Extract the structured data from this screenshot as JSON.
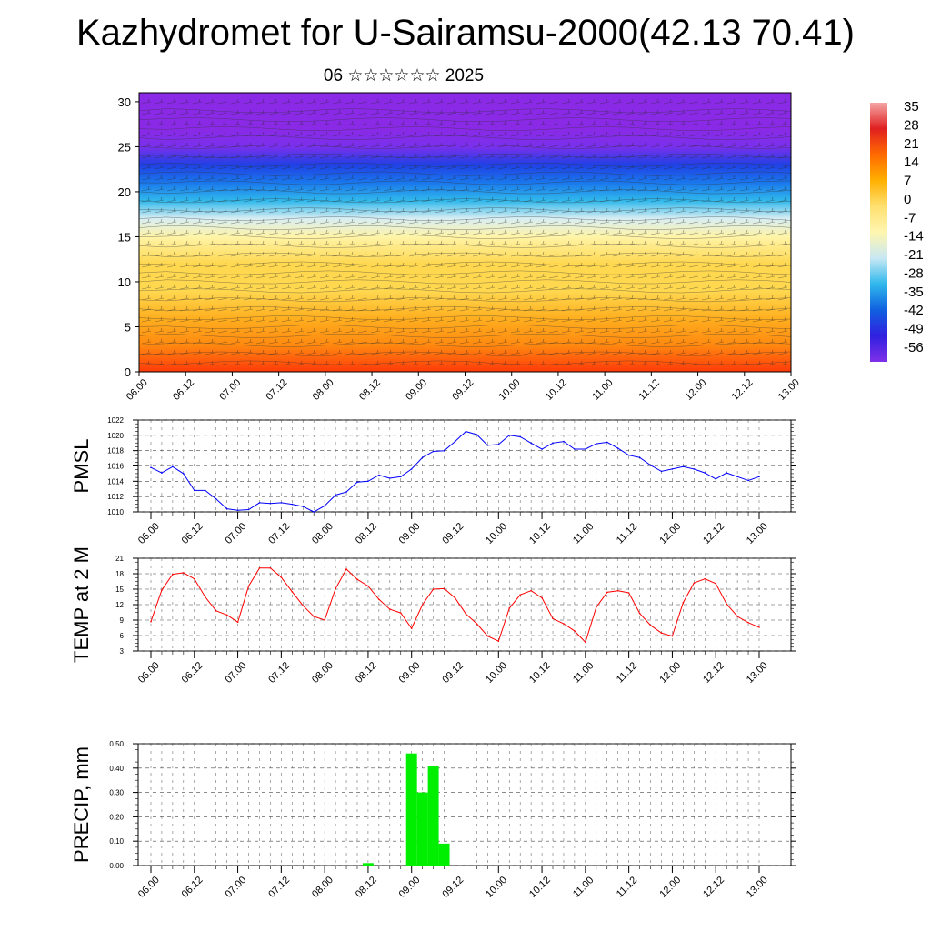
{
  "header": {
    "title": "Kazhydromet for U-Sairamsu-2000(42.13 70.41)",
    "subtitle": "06 ☆☆☆☆☆☆ 2025"
  },
  "chart_data": [
    {
      "type": "heatmap",
      "title": "",
      "x": [
        "06.00",
        "06.12",
        "07.00",
        "07.12",
        "08.00",
        "08.12",
        "09.00",
        "09.12",
        "10.00",
        "10.12",
        "11.00",
        "11.12",
        "12.00",
        "12.12",
        "13.00"
      ],
      "y_ticks": [
        0,
        5,
        10,
        15,
        20,
        25,
        30
      ],
      "ylim": [
        0,
        31
      ],
      "colorbar_labels": [
        "35",
        "28",
        "21",
        "14",
        "7",
        "0",
        "-7",
        "-14",
        "-21",
        "-28",
        "-35",
        "-42",
        "-49",
        "-56"
      ],
      "colorbar_colors": [
        "#f4a6a6",
        "#e02020",
        "#ff6a00",
        "#ffb000",
        "#ffe070",
        "#fff6b0",
        "#c8e8f4",
        "#30b8ec",
        "#1060e0",
        "#3020e0",
        "#8030e8"
      ],
      "temperature_profile": {
        "heights": [
          0,
          3,
          6,
          9,
          12,
          15,
          17,
          19,
          21,
          23,
          25,
          27,
          31
        ],
        "values_near": [
          21,
          16,
          11,
          6,
          1,
          -7,
          -14,
          -24,
          -35,
          -45,
          -54,
          -58,
          -60
        ]
      },
      "overlay": "wind barbs",
      "grid": false
    },
    {
      "type": "line",
      "ylabel": "PMSL",
      "color": "#0000ff",
      "ylim": [
        1010,
        1022
      ],
      "y_ticks": [
        "1010",
        "1012",
        "1014",
        "1016",
        "1018",
        "1020",
        "1022"
      ],
      "x_ticks": [
        "06.00",
        "06.12",
        "07.00",
        "07.12",
        "08.00",
        "08.12",
        "09.00",
        "09.12",
        "10.00",
        "10.12",
        "11.00",
        "11.12",
        "12.00",
        "12.12",
        "13.00"
      ],
      "x_hours_step": 3,
      "values": [
        1015.8,
        1015.1,
        1015.9,
        1015.0,
        1012.8,
        1012.8,
        1011.7,
        1010.4,
        1010.2,
        1010.3,
        1011.2,
        1011.1,
        1011.2,
        1011.0,
        1010.7,
        1010.0,
        1010.8,
        1012.2,
        1012.6,
        1013.9,
        1014.0,
        1014.8,
        1014.4,
        1014.6,
        1015.6,
        1017.1,
        1017.9,
        1018.0,
        1019.2,
        1020.5,
        1020.1,
        1018.7,
        1018.8,
        1020.0,
        1019.8,
        1019.0,
        1018.2,
        1019.0,
        1019.2,
        1018.2,
        1018.2,
        1018.9,
        1019.1,
        1018.3,
        1017.4,
        1017.1,
        1016.1,
        1015.3,
        1015.6,
        1015.9,
        1015.6,
        1015.1,
        1014.3,
        1015.1,
        1014.6,
        1014.1,
        1014.6
      ]
    },
    {
      "type": "line",
      "ylabel": "TEMP at 2 M",
      "color": "#ff0000",
      "ylim": [
        3,
        21
      ],
      "y_ticks": [
        "3",
        "6",
        "9",
        "12",
        "15",
        "18",
        "21"
      ],
      "x_ticks": [
        "06.00",
        "06.12",
        "07.00",
        "07.12",
        "08.00",
        "08.12",
        "09.00",
        "09.12",
        "10.00",
        "10.12",
        "11.00",
        "11.12",
        "12.00",
        "12.12",
        "13.00"
      ],
      "x_hours_step": 3,
      "values": [
        8.7,
        14.8,
        17.9,
        18.2,
        17.0,
        13.5,
        10.8,
        10.0,
        8.6,
        15.6,
        19.1,
        19.1,
        17.3,
        14.5,
        11.8,
        9.7,
        9.0,
        15.1,
        18.9,
        16.9,
        15.6,
        13.0,
        11.1,
        10.4,
        7.4,
        12.0,
        15.0,
        15.1,
        13.3,
        10.2,
        8.3,
        5.9,
        4.9,
        11.3,
        13.9,
        14.7,
        13.3,
        9.3,
        8.3,
        6.9,
        4.7,
        11.5,
        14.4,
        14.7,
        14.3,
        10.3,
        8.0,
        6.5,
        5.9,
        12.4,
        16.2,
        17.0,
        16.1,
        12.1,
        9.7,
        8.5,
        7.6
      ]
    },
    {
      "type": "bar",
      "ylabel": "PRECIP, mm",
      "color": "#00ee00",
      "ylim": [
        0,
        0.5
      ],
      "y_ticks": [
        "0.00",
        "0.10",
        "0.20",
        "0.30",
        "0.40",
        "0.50"
      ],
      "x_ticks": [
        "06.00",
        "06.12",
        "07.00",
        "07.12",
        "08.00",
        "08.12",
        "09.00",
        "09.12",
        "10.00",
        "10.12",
        "11.00",
        "11.12",
        "12.00",
        "12.12",
        "13.00"
      ],
      "x_hours_step": 3,
      "values": [
        0,
        0,
        0,
        0,
        0,
        0,
        0,
        0,
        0,
        0,
        0,
        0,
        0,
        0,
        0,
        0,
        0,
        0,
        0,
        0,
        0.01,
        0,
        0,
        0,
        0.46,
        0.3,
        0.41,
        0.09,
        0,
        0,
        0,
        0,
        0,
        0,
        0,
        0,
        0,
        0,
        0,
        0,
        0,
        0,
        0,
        0,
        0,
        0,
        0,
        0,
        0,
        0,
        0,
        0,
        0,
        0,
        0,
        0,
        0
      ]
    }
  ]
}
